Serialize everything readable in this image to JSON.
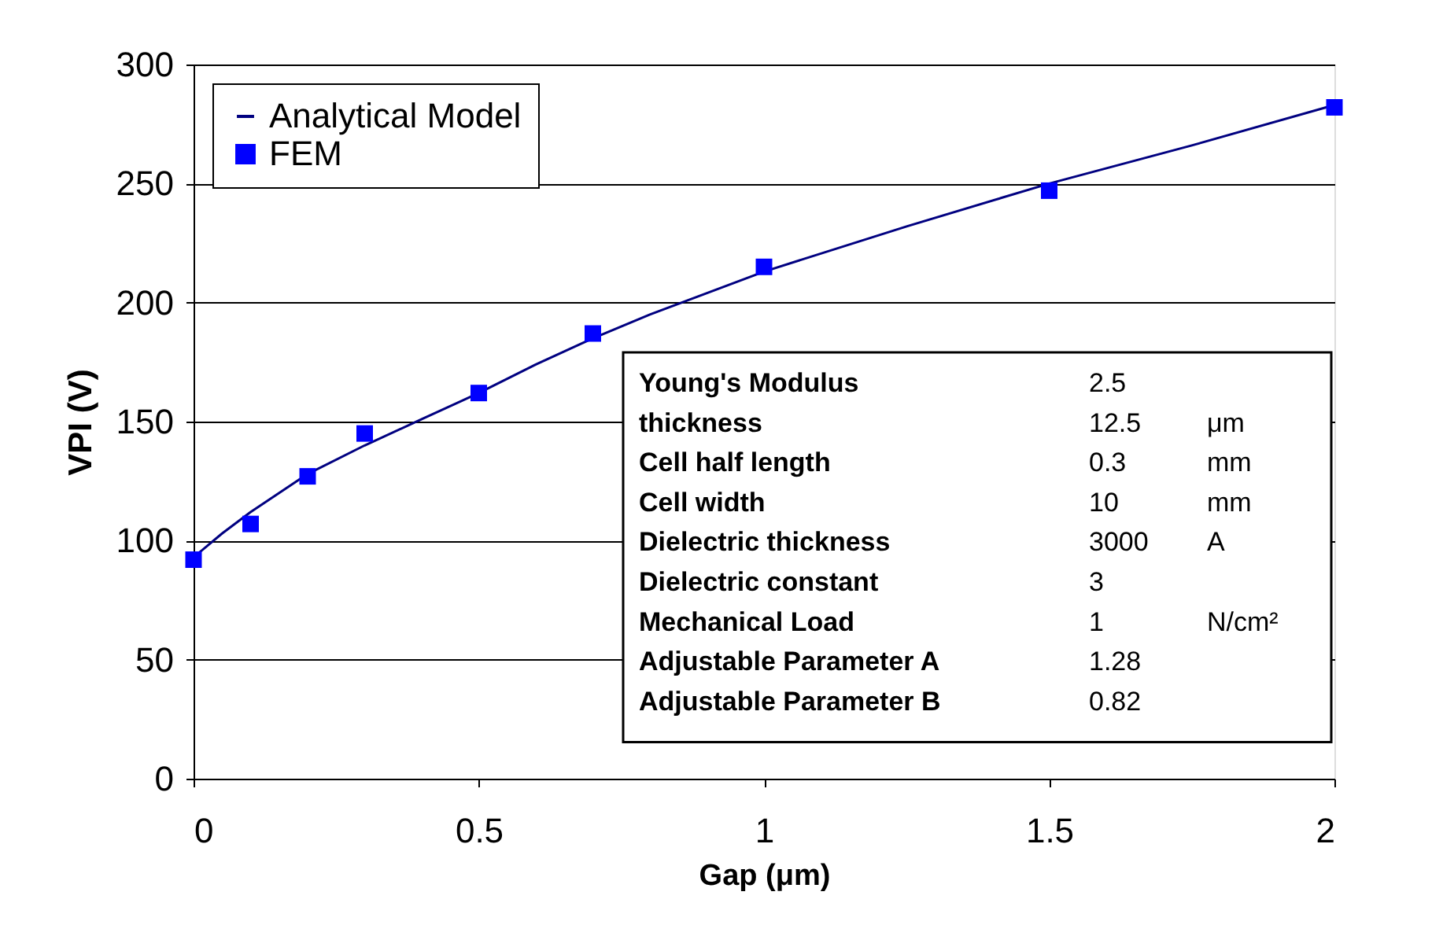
{
  "chart_data": {
    "type": "line",
    "xlabel": "Gap (μm)",
    "ylabel": "VPI (V)",
    "xlim": [
      0,
      2
    ],
    "xticks": [
      0,
      0.5,
      1,
      1.5,
      2
    ],
    "ylim": [
      0,
      300
    ],
    "yticks": [
      0,
      50,
      100,
      150,
      200,
      250,
      300
    ],
    "grid": "y",
    "legend": "top left",
    "series": [
      {
        "name": "Analytical Model",
        "color": "#000080",
        "line_style": "solid",
        "x": [
          0,
          0.05,
          0.1,
          0.2,
          0.3,
          0.4,
          0.5,
          0.6,
          0.7,
          0.8,
          0.9,
          1.0,
          1.25,
          1.5,
          1.75,
          2.0
        ],
        "values": [
          93,
          103,
          112,
          128,
          140,
          151,
          162,
          174,
          185,
          195,
          204,
          213,
          232,
          250,
          266,
          283
        ]
      },
      {
        "name": "FEM",
        "type": "scatter",
        "color": "#0000ff",
        "marker": "square",
        "x": [
          0,
          0.1,
          0.2,
          0.3,
          0.5,
          0.7,
          1,
          1.5,
          2
        ],
        "values": [
          92,
          107,
          127,
          145,
          162,
          187,
          215,
          247,
          282
        ]
      }
    ],
    "annotations": [
      "Young's Modulus\t2.5",
      "thickness\t12.5\tμm",
      "Cell half length\t0.3\tmm",
      "Cell width\t10\tmm",
      "Dielectric thickness\t3000\tA",
      "Dielectric constant\t3",
      "Mechanical Load\t1\tN/cm²",
      "Adjustable Parameter  A\t1.28",
      "Adjustable Parameter  B\t0.82"
    ]
  }
}
